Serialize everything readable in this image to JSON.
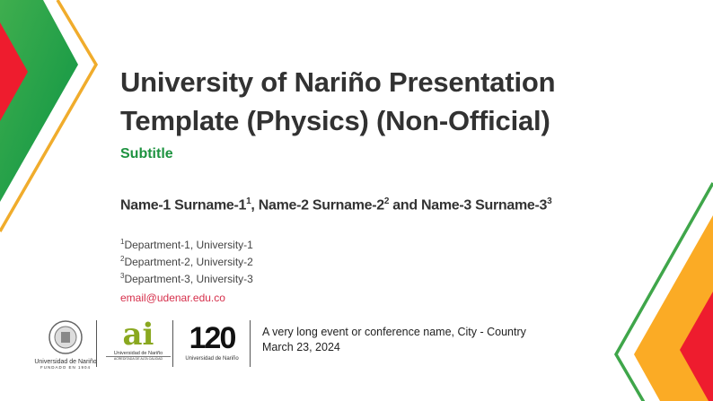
{
  "slide": {
    "title_line1": "University of Nariño Presentation",
    "title_line2": "Template (Physics) (Non-Official)",
    "subtitle": "Subtitle",
    "authors": [
      {
        "name": "Name-1 Surname-1",
        "sup": "1",
        "sep": ", "
      },
      {
        "name": "Name-2 Surname-2",
        "sup": "2",
        "sep": " and "
      },
      {
        "name": "Name-3 Surname-3",
        "sup": "3",
        "sep": ""
      }
    ],
    "affiliations": [
      {
        "sup": "1",
        "text": "Department-1, University-1"
      },
      {
        "sup": "2",
        "text": "Department-2, University-2"
      },
      {
        "sup": "3",
        "text": "Department-3, University-3"
      }
    ],
    "email": "email@udenar.edu.co",
    "event": "A very long event or conference name, City - Country",
    "date": "March 23, 2024"
  },
  "logos": {
    "seal_caption": "Universidad de Nariño",
    "seal_sub": "FUNDADO EN 1904",
    "ai_mark": "ai",
    "ai_caption": "Universidad de Nariño",
    "ai_sub": "ACREDITADA DE ALTA CALIDAD",
    "anniv_mark": "120",
    "anniv_caption": "Universidad de Nariño"
  },
  "colors": {
    "green": "#1e9340",
    "orange": "#f2a81d",
    "red": "#ee1c2e",
    "email": "#d62f4b"
  }
}
